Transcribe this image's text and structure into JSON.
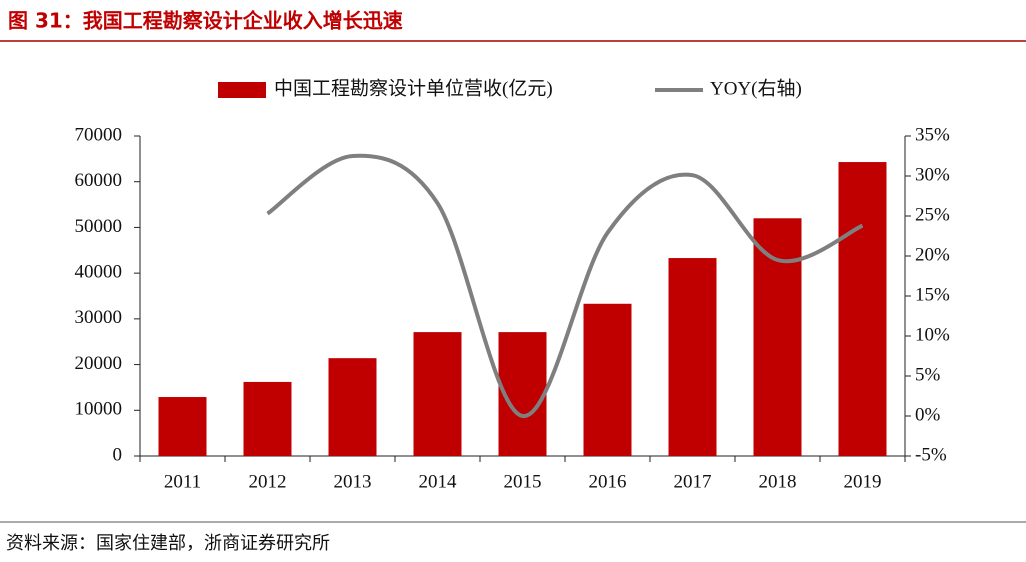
{
  "chart_data": {
    "type": "bar_line",
    "title": "图 31：我国工程勘察设计企业收入增长迅速",
    "source": "资料来源：国家住建部，浙商证券研究所",
    "categories": [
      "2011",
      "2012",
      "2013",
      "2014",
      "2015",
      "2016",
      "2017",
      "2018",
      "2019"
    ],
    "series": [
      {
        "name": "中国工程勘察设计单位营收(亿元)",
        "type": "bar",
        "color": "#c00000",
        "values": [
          12900,
          16200,
          21400,
          27100,
          27100,
          33300,
          43300,
          52000,
          64300
        ]
      },
      {
        "name": "YOY(右轴)",
        "type": "line",
        "axis": "y2",
        "color": "#7f7f7f",
        "values": [
          null,
          25.3,
          32.5,
          26.6,
          0,
          22.9,
          30.1,
          19.5,
          23.8
        ]
      }
    ],
    "ylim": [
      0,
      70000
    ],
    "yticks": [
      0,
      10000,
      20000,
      30000,
      40000,
      50000,
      60000,
      70000
    ],
    "y2lim": [
      -5,
      35
    ],
    "y2ticks": [
      {
        "value": -5,
        "label": "-5%"
      },
      {
        "value": 0,
        "label": "0%"
      },
      {
        "value": 5,
        "label": "5%"
      },
      {
        "value": 10,
        "label": "10%"
      },
      {
        "value": 15,
        "label": "15%"
      },
      {
        "value": 20,
        "label": "20%"
      },
      {
        "value": 25,
        "label": "25%"
      },
      {
        "value": 30,
        "label": "30%"
      },
      {
        "value": 35,
        "label": "35%"
      }
    ],
    "legend": "top"
  }
}
